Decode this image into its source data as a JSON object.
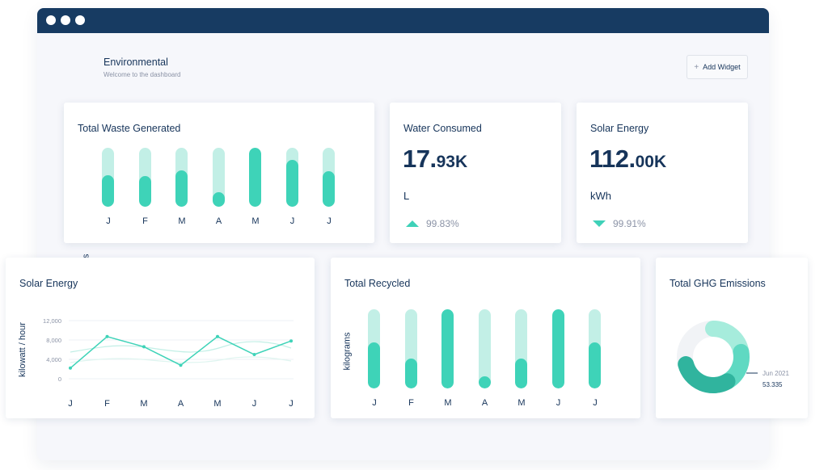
{
  "colors": {
    "titlebar": "#173b62",
    "accent": "#3ed3b8",
    "accent_light": "#c2efe6",
    "text": "#16345a",
    "muted": "#8b93a6"
  },
  "header": {
    "title": "Environmental",
    "subtitle": "Welcome to the dashboard",
    "add_widget_label": "Add Widget",
    "add_icon": "plus-icon"
  },
  "cards": {
    "waste": {
      "title": "Total Waste Generated"
    },
    "water": {
      "title": "Water Consumed",
      "value_int": "17.",
      "value_frac": "93K",
      "unit": "L",
      "trend": "99.83%",
      "trend_direction": "up"
    },
    "solar_kpi": {
      "title": "Solar Energy",
      "value_int": "112.",
      "value_frac": "00K",
      "unit": "kWh",
      "trend": "99.91%",
      "trend_direction": "down"
    },
    "solar_chart": {
      "title": "Solar Energy"
    },
    "recycled": {
      "title": "Total Recycled"
    },
    "ghg": {
      "title": "Total GHG Emissions",
      "annotation_date": "Jun 2021",
      "annotation_value": "53.335"
    }
  },
  "chart_data": [
    {
      "type": "bar",
      "title": "Total Waste Generated",
      "ylabel": "kilograms",
      "categories": [
        "J",
        "F",
        "M",
        "A",
        "M",
        "J",
        "J"
      ],
      "values": [
        0.53,
        0.52,
        0.61,
        0.25,
        1.0,
        0.8,
        0.6
      ],
      "ylim": [
        0,
        1
      ]
    },
    {
      "type": "line",
      "title": "Solar Energy",
      "ylabel": "kilowatt / hour",
      "categories": [
        "J",
        "F",
        "M",
        "A",
        "M",
        "J",
        "J"
      ],
      "yticks": [
        "12,000",
        "8,000",
        "4,000",
        "0"
      ],
      "ytick_values": [
        12000,
        8000,
        4000,
        0
      ],
      "ylim": [
        0,
        12000
      ],
      "series": [
        {
          "values": [
            2200,
            8700,
            6600,
            2800,
            8700,
            5000,
            7800
          ]
        }
      ],
      "grid": true
    },
    {
      "type": "bar",
      "title": "Total Recycled",
      "ylabel": "kilograms",
      "categories": [
        "J",
        "F",
        "M",
        "A",
        "M",
        "J",
        "J"
      ],
      "values": [
        0.58,
        0.38,
        1.0,
        0.15,
        0.38,
        1.0,
        0.58
      ],
      "ylim": [
        0,
        1
      ]
    },
    {
      "type": "pie",
      "title": "Total GHG Emissions",
      "values": [
        25,
        25,
        50
      ],
      "annotation": {
        "label": "Jun 2021",
        "value": "53.335"
      }
    }
  ]
}
